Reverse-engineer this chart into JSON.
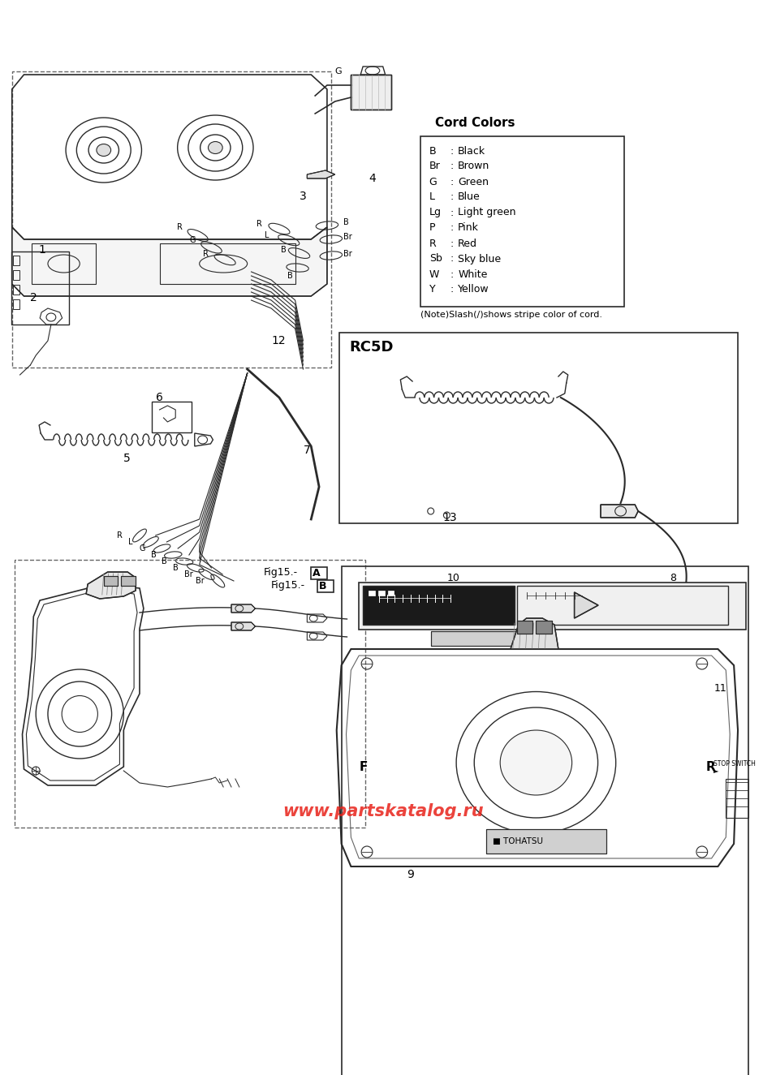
{
  "bg_color": "#ffffff",
  "lc": "#2a2a2a",
  "fig_w": 9.4,
  "fig_h": 13.25,
  "cord_colors_title": "Cord Colors",
  "cord_colors": [
    [
      "B",
      "Black"
    ],
    [
      "Br",
      "Brown"
    ],
    [
      "G",
      "Green"
    ],
    [
      "L",
      "Blue"
    ],
    [
      "Lg",
      "Light green"
    ],
    [
      "P",
      "Pink"
    ],
    [
      "R",
      "Red"
    ],
    [
      "Sb",
      "Sky blue"
    ],
    [
      "W",
      "White"
    ],
    [
      "Y",
      "Yellow"
    ]
  ],
  "cord_note": "(Note)Slash(/)shows stripe color of cord.",
  "rc5d_label": "RC5D",
  "watermark": "www.partskatalog.ru",
  "wm_color": "#e8221a",
  "fig15a": "Fig15.-",
  "fig15b": "Fig15.-",
  "lA": "A",
  "lB": "B"
}
